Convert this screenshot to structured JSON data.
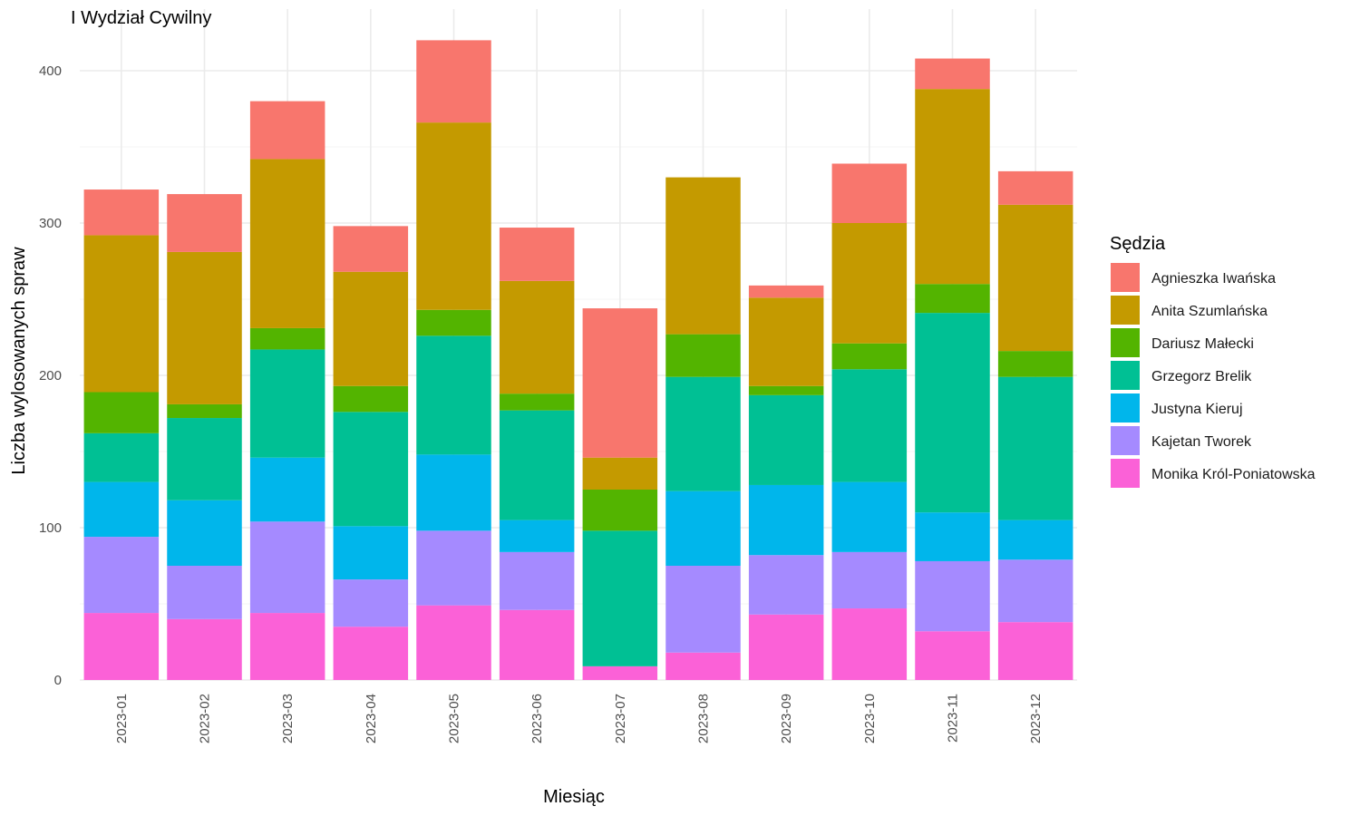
{
  "chart_data": {
    "type": "bar",
    "stacked": true,
    "title": "I Wydział Cywilny",
    "xlabel": "Miesiąc",
    "ylabel": "Liczba wylosowanych spraw",
    "ylim": [
      0,
      420
    ],
    "yticks": [
      0,
      100,
      200,
      300,
      400
    ],
    "grid": true,
    "legend": {
      "title": "Sędzia",
      "position": "right"
    },
    "categories": [
      "2023-01",
      "2023-02",
      "2023-03",
      "2023-04",
      "2023-05",
      "2023-06",
      "2023-07",
      "2023-08",
      "2023-09",
      "2023-10",
      "2023-11",
      "2023-12"
    ],
    "series": [
      {
        "name": "Agnieszka Iwańska",
        "color": "#F8766D",
        "values": [
          30,
          38,
          38,
          30,
          54,
          35,
          98,
          0,
          8,
          39,
          20,
          22
        ]
      },
      {
        "name": "Anita Szumlańska",
        "color": "#C49A00",
        "values": [
          103,
          100,
          111,
          75,
          123,
          74,
          21,
          103,
          58,
          79,
          128,
          96
        ]
      },
      {
        "name": "Dariusz Małecki",
        "color": "#53B400",
        "values": [
          27,
          9,
          14,
          17,
          17,
          11,
          27,
          28,
          6,
          17,
          19,
          17
        ]
      },
      {
        "name": "Grzegorz Brelik",
        "color": "#00C094",
        "values": [
          32,
          54,
          71,
          75,
          78,
          72,
          89,
          75,
          59,
          74,
          131,
          94
        ]
      },
      {
        "name": "Justyna Kieruj",
        "color": "#00B6EB",
        "values": [
          36,
          43,
          42,
          35,
          50,
          21,
          0,
          49,
          46,
          46,
          32,
          26
        ]
      },
      {
        "name": "Kajetan Tworek",
        "color": "#A58AFF",
        "values": [
          50,
          35,
          60,
          31,
          49,
          38,
          0,
          57,
          39,
          37,
          46,
          41
        ]
      },
      {
        "name": "Monika Król-Poniatowska",
        "color": "#FB61D7",
        "values": [
          44,
          40,
          44,
          35,
          49,
          46,
          9,
          18,
          43,
          47,
          32,
          38
        ]
      }
    ]
  }
}
